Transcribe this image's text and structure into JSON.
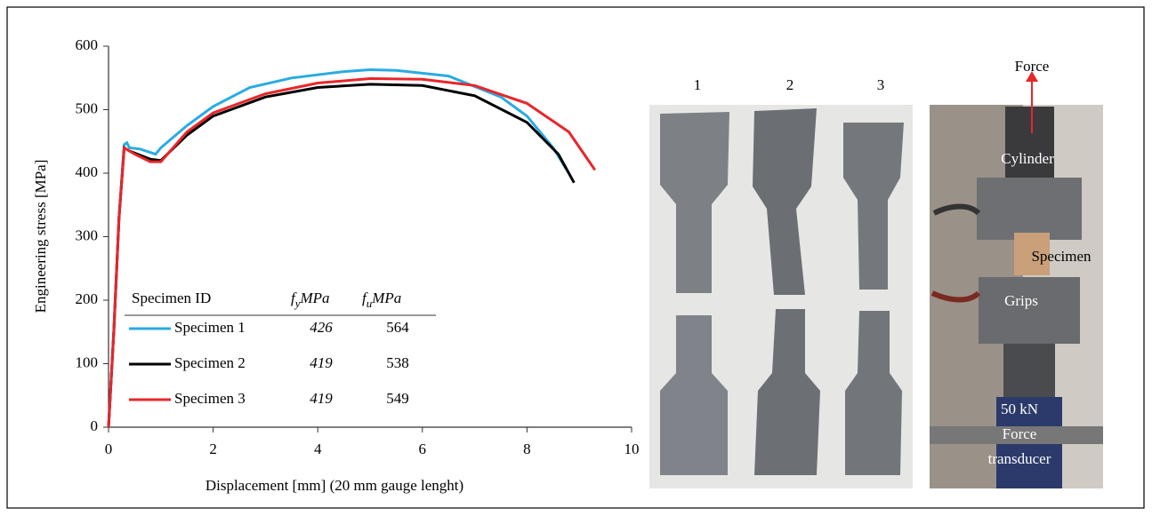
{
  "chart_data": {
    "type": "line",
    "x_label": "Displacement [mm] (20 mm gauge lenght)",
    "y_label": "Engineering stress [MPa]",
    "xlim": [
      0,
      10
    ],
    "xticks": [
      0,
      2,
      4,
      6,
      8,
      10
    ],
    "ylim": [
      0,
      600
    ],
    "yticks": [
      0,
      100,
      200,
      300,
      400,
      500,
      600
    ],
    "table_headers": [
      {
        "text": "Specimen ID"
      },
      {
        "symbol": "f",
        "subscript": "y",
        "unit": "MPa"
      },
      {
        "symbol": "f",
        "subscript": "u",
        "unit": "MPa"
      }
    ],
    "series": [
      {
        "name": "Specimen 1",
        "color": "#29abe2",
        "fy": 426,
        "fu": 564,
        "x": [
          0,
          0.1,
          0.2,
          0.3,
          0.35,
          0.4,
          0.6,
          0.9,
          1.0,
          1.5,
          2.0,
          2.7,
          3.5,
          4.5,
          5.0,
          5.5,
          6.5,
          7.5,
          8.0,
          8.5,
          8.8
        ],
        "values": [
          0,
          150,
          330,
          445,
          448,
          440,
          438,
          430,
          440,
          475,
          505,
          535,
          550,
          560,
          563,
          562,
          553,
          520,
          490,
          440,
          400
        ]
      },
      {
        "name": "Specimen 2",
        "color": "#000000",
        "fy": 419,
        "fu": 538,
        "x": [
          0,
          0.1,
          0.2,
          0.3,
          0.4,
          0.8,
          1.0,
          1.5,
          2.0,
          3.0,
          4.0,
          5.0,
          6.0,
          7.0,
          8.0,
          8.6,
          8.9
        ],
        "values": [
          0,
          150,
          330,
          440,
          435,
          422,
          420,
          460,
          490,
          520,
          535,
          540,
          538,
          522,
          480,
          430,
          385
        ]
      },
      {
        "name": "Specimen 3",
        "color": "#e8262a",
        "fy": 419,
        "fu": 549,
        "x": [
          0,
          0.1,
          0.2,
          0.3,
          0.5,
          0.8,
          1.0,
          1.5,
          2.0,
          3.0,
          4.0,
          5.0,
          6.0,
          7.0,
          8.0,
          8.8,
          9.3
        ],
        "values": [
          0,
          150,
          330,
          440,
          430,
          418,
          418,
          465,
          495,
          525,
          542,
          549,
          548,
          538,
          510,
          465,
          405
        ]
      }
    ]
  },
  "photos": {
    "specimen_numbers": [
      "1",
      "2",
      "3"
    ],
    "rig_labels": {
      "force": "Force",
      "cylinder": "Cylinder",
      "specimen": "Specimen",
      "grips": "Grips",
      "transducer": [
        "50 kN",
        "Force",
        "transducer"
      ]
    }
  }
}
